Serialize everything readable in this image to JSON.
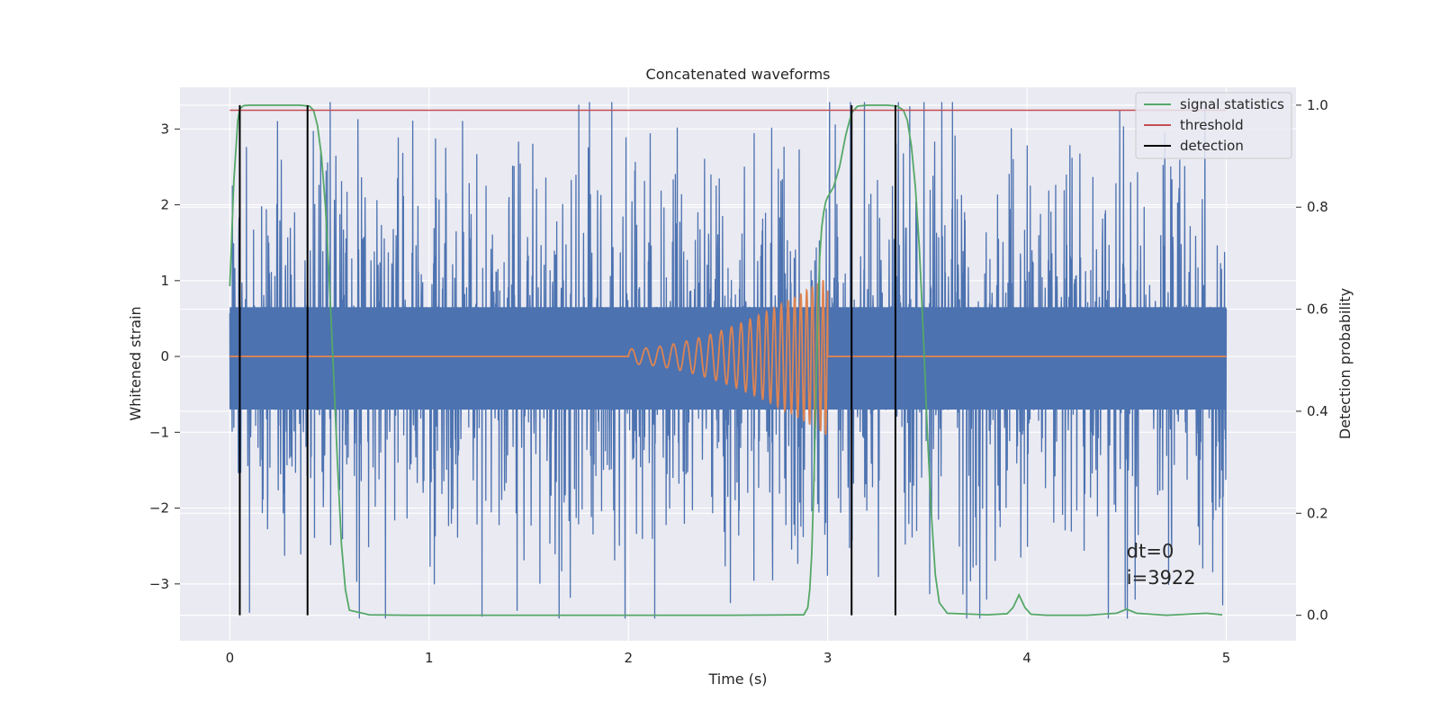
{
  "chart_data": {
    "type": "line",
    "title": "Concatenated waveforms",
    "xlabel": "Time (s)",
    "ylabel": "Whitened strain",
    "ylabel_right": "Detection probability",
    "xlim": [
      -0.25,
      5.35
    ],
    "ylim": [
      -3.75,
      3.55
    ],
    "ylim_right": [
      -0.05,
      1.035
    ],
    "x_ticks": [
      "0",
      "1",
      "2",
      "3",
      "4",
      "5"
    ],
    "x_tick_values": [
      0,
      1,
      2,
      3,
      4,
      5
    ],
    "y_ticks": [
      "−3",
      "−2",
      "−1",
      "0",
      "1",
      "2",
      "3"
    ],
    "y_tick_values": [
      -3,
      -2,
      -1,
      0,
      1,
      2,
      3
    ],
    "y_ticks_right": [
      "0.0",
      "0.2",
      "0.4",
      "0.6",
      "0.8",
      "1.0"
    ],
    "y_tick_values_right": [
      0,
      0.2,
      0.4,
      0.6,
      0.8,
      1.0
    ],
    "grid": true,
    "legend_position": "top-right",
    "colors": {
      "background": "#eaeaf2",
      "grid": "#ffffff",
      "strain": "#4c72b0",
      "template": "#dd8452",
      "signal_statistics": "#55a868",
      "threshold": "#c44e52",
      "detection": "#000000"
    },
    "legend": [
      {
        "label": "signal statistics",
        "color": "#55a868"
      },
      {
        "label": "threshold",
        "color": "#c44e52"
      },
      {
        "label": "detection",
        "color": "#000000"
      }
    ],
    "strain_series": {
      "x_range": [
        0,
        5
      ],
      "dense_band": [
        -0.7,
        0.65
      ],
      "typical_extent": [
        -2.7,
        2.9
      ],
      "peak_extent": [
        -3.45,
        3.35
      ]
    },
    "template_series": {
      "x_range": [
        2.0,
        3.0
      ],
      "baseline": 0,
      "start_amplitude": 0.1,
      "end_amplitude": 1.05,
      "end_time": 3.0
    },
    "signal_statistics": {
      "x": [
        0.0,
        0.02,
        0.04,
        0.05,
        0.07,
        0.1,
        0.2,
        0.3,
        0.35,
        0.4,
        0.42,
        0.44,
        0.46,
        0.48,
        0.5,
        0.52,
        0.54,
        0.56,
        0.58,
        0.6,
        0.7,
        0.9,
        1.5,
        2.0,
        2.5,
        2.88,
        2.9,
        2.91,
        2.92,
        2.93,
        2.94,
        2.95,
        2.96,
        2.97,
        2.98,
        2.99,
        3.0,
        3.03,
        3.06,
        3.09,
        3.12,
        3.15,
        3.2,
        3.3,
        3.35,
        3.38,
        3.4,
        3.42,
        3.44,
        3.46,
        3.48,
        3.5,
        3.52,
        3.54,
        3.56,
        3.6,
        3.8,
        3.9,
        3.93,
        3.96,
        3.99,
        4.02,
        4.1,
        4.3,
        4.45,
        4.5,
        4.55,
        4.7,
        4.9,
        4.98
      ],
      "y": [
        0.645,
        0.85,
        0.97,
        0.993,
        0.999,
        1.0,
        1.0,
        1.0,
        1.0,
        0.998,
        0.99,
        0.96,
        0.9,
        0.8,
        0.65,
        0.48,
        0.3,
        0.14,
        0.05,
        0.01,
        0.001,
        0.0,
        0.0,
        0.0,
        0.0,
        0.001,
        0.015,
        0.05,
        0.12,
        0.25,
        0.42,
        0.58,
        0.7,
        0.76,
        0.79,
        0.81,
        0.82,
        0.84,
        0.88,
        0.94,
        0.985,
        0.998,
        1.0,
        1.0,
        0.998,
        0.99,
        0.97,
        0.92,
        0.84,
        0.72,
        0.55,
        0.36,
        0.2,
        0.08,
        0.025,
        0.004,
        0.001,
        0.003,
        0.015,
        0.04,
        0.015,
        0.002,
        0.0,
        0.0,
        0.004,
        0.012,
        0.004,
        0.0,
        0.004,
        0.001
      ]
    },
    "threshold": {
      "y": 0.99,
      "x_range": [
        0,
        5
      ]
    },
    "detections": [
      {
        "x": 0.05,
        "y_range": [
          0,
          1.0
        ]
      },
      {
        "x": 0.39,
        "y_range": [
          0,
          1.0
        ]
      },
      {
        "x": 3.12,
        "y_range": [
          0,
          1.0
        ]
      },
      {
        "x": 3.34,
        "y_range": [
          0,
          1.0
        ]
      }
    ],
    "annotations": [
      {
        "text": "dt=0",
        "x": 4.5,
        "y": -2.65
      },
      {
        "text": "i=3922",
        "x": 4.5,
        "y": -3.0
      }
    ]
  }
}
